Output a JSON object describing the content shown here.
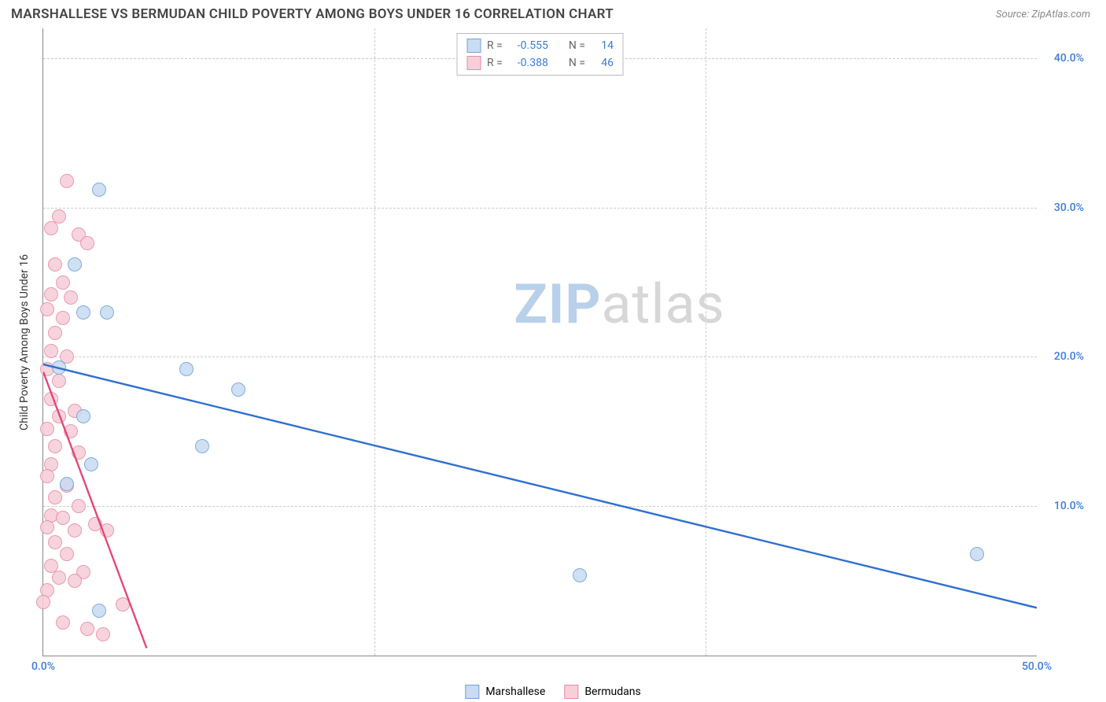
{
  "header": {
    "title": "MARSHALLESE VS BERMUDAN CHILD POVERTY AMONG BOYS UNDER 16 CORRELATION CHART",
    "source_prefix": "Source: ",
    "source_name": "ZipAtlas.com"
  },
  "chart": {
    "type": "scatter",
    "ylabel": "Child Poverty Among Boys Under 16",
    "xlim": [
      0,
      50
    ],
    "ylim": [
      0,
      42
    ],
    "yticks": [
      10,
      20,
      30,
      40
    ],
    "ytick_labels": [
      "10.0%",
      "20.0%",
      "30.0%",
      "40.0%"
    ],
    "xtick_origin": "0.0%",
    "xtick_max": "50.0%",
    "grid_color": "#cccccc",
    "axis_color": "#888888",
    "tick_color": "#3b7dd8",
    "background_color": "#ffffff",
    "marker_radius": 9,
    "marker_stroke_width": 1,
    "series": [
      {
        "name": "Marshallese",
        "fill": "#c9dcf2",
        "stroke": "#6ea2da",
        "line_color": "#2f6fd0",
        "line_width": 2.4,
        "R": "-0.555",
        "N": "14",
        "trend": {
          "x1": 0,
          "y1": 19.5,
          "x2": 50,
          "y2": 3.2
        },
        "points": [
          {
            "x": 2.8,
            "y": 31.2
          },
          {
            "x": 1.6,
            "y": 26.2
          },
          {
            "x": 2.0,
            "y": 23.0
          },
          {
            "x": 3.2,
            "y": 23.0
          },
          {
            "x": 0.8,
            "y": 19.3
          },
          {
            "x": 7.2,
            "y": 19.2
          },
          {
            "x": 9.8,
            "y": 17.8
          },
          {
            "x": 2.0,
            "y": 16.0
          },
          {
            "x": 8.0,
            "y": 14.0
          },
          {
            "x": 2.4,
            "y": 12.8
          },
          {
            "x": 27.0,
            "y": 5.4
          },
          {
            "x": 47.0,
            "y": 6.8
          },
          {
            "x": 2.8,
            "y": 3.0
          },
          {
            "x": 1.2,
            "y": 11.5
          }
        ]
      },
      {
        "name": "Bermudans",
        "fill": "#f6cfd9",
        "stroke": "#e88ba4",
        "line_color": "#e04a77",
        "line_width": 2.4,
        "R": "-0.388",
        "N": "46",
        "trend": {
          "x1": 0,
          "y1": 19.0,
          "x2": 5.2,
          "y2": 0.5
        },
        "points": [
          {
            "x": 1.2,
            "y": 31.8
          },
          {
            "x": 0.8,
            "y": 29.4
          },
          {
            "x": 0.4,
            "y": 28.6
          },
          {
            "x": 1.8,
            "y": 28.2
          },
          {
            "x": 2.2,
            "y": 27.6
          },
          {
            "x": 0.6,
            "y": 26.2
          },
          {
            "x": 1.0,
            "y": 25.0
          },
          {
            "x": 0.4,
            "y": 24.2
          },
          {
            "x": 1.4,
            "y": 24.0
          },
          {
            "x": 0.2,
            "y": 23.2
          },
          {
            "x": 1.0,
            "y": 22.6
          },
          {
            "x": 0.6,
            "y": 21.6
          },
          {
            "x": 0.4,
            "y": 20.4
          },
          {
            "x": 1.2,
            "y": 20.0
          },
          {
            "x": 0.2,
            "y": 19.2
          },
          {
            "x": 0.8,
            "y": 18.4
          },
          {
            "x": 0.4,
            "y": 17.2
          },
          {
            "x": 1.6,
            "y": 16.4
          },
          {
            "x": 0.8,
            "y": 16.0
          },
          {
            "x": 0.2,
            "y": 15.2
          },
          {
            "x": 1.4,
            "y": 15.0
          },
          {
            "x": 0.6,
            "y": 14.0
          },
          {
            "x": 1.8,
            "y": 13.6
          },
          {
            "x": 0.4,
            "y": 12.8
          },
          {
            "x": 0.2,
            "y": 12.0
          },
          {
            "x": 1.2,
            "y": 11.4
          },
          {
            "x": 0.6,
            "y": 10.6
          },
          {
            "x": 1.8,
            "y": 10.0
          },
          {
            "x": 0.4,
            "y": 9.4
          },
          {
            "x": 1.0,
            "y": 9.2
          },
          {
            "x": 0.2,
            "y": 8.6
          },
          {
            "x": 1.6,
            "y": 8.4
          },
          {
            "x": 2.6,
            "y": 8.8
          },
          {
            "x": 3.2,
            "y": 8.4
          },
          {
            "x": 0.6,
            "y": 7.6
          },
          {
            "x": 1.2,
            "y": 6.8
          },
          {
            "x": 0.4,
            "y": 6.0
          },
          {
            "x": 2.0,
            "y": 5.6
          },
          {
            "x": 0.8,
            "y": 5.2
          },
          {
            "x": 1.6,
            "y": 5.0
          },
          {
            "x": 0.2,
            "y": 4.4
          },
          {
            "x": 0.0,
            "y": 3.6
          },
          {
            "x": 4.0,
            "y": 3.4
          },
          {
            "x": 1.0,
            "y": 2.2
          },
          {
            "x": 2.2,
            "y": 1.8
          },
          {
            "x": 3.0,
            "y": 1.4
          }
        ]
      }
    ]
  },
  "stats_box": {
    "labels": {
      "R": "R =",
      "N": "N ="
    }
  },
  "legend_bottom": {
    "items": [
      "Marshallese",
      "Bermudans"
    ]
  },
  "watermark": {
    "zip": "ZIP",
    "atlas": "atlas",
    "zip_color": "#b9d0ea",
    "atlas_color": "#d7d7d7"
  }
}
